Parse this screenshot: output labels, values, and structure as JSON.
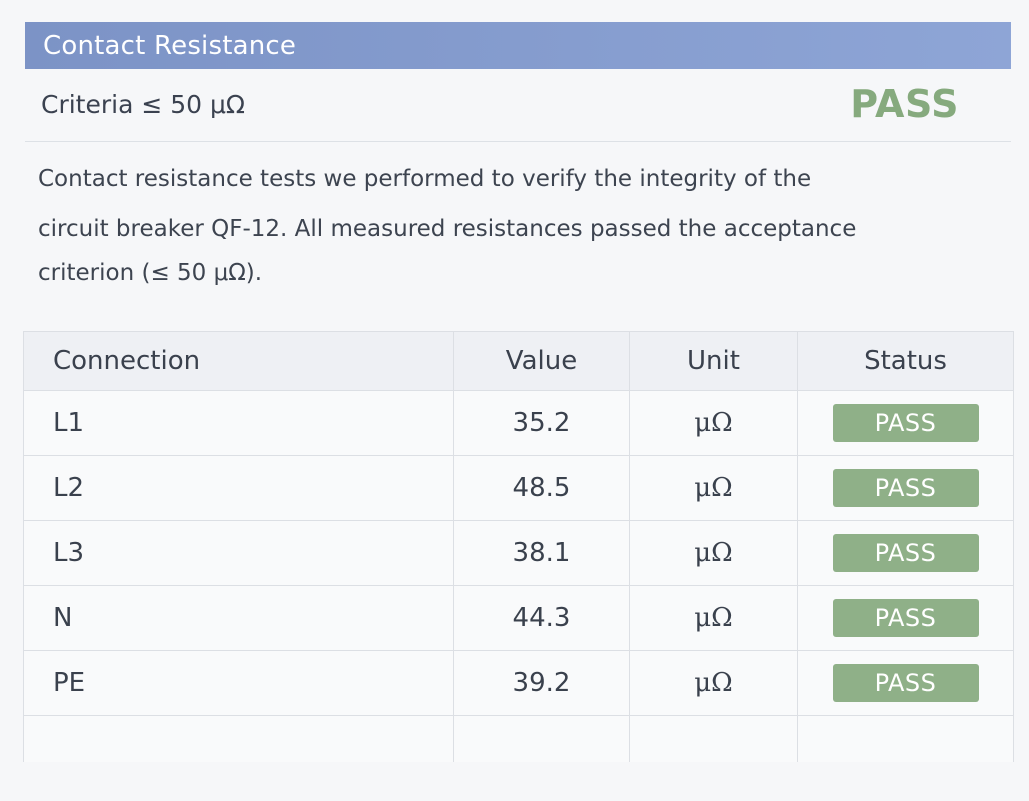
{
  "section": {
    "title": "Contact Resistance",
    "criteria": "Criteria ≤ 50 μΩ",
    "overall_status": "PASS"
  },
  "description": {
    "line1": "Contact resistance tests we performed to verify the integrity of the",
    "line2": "circuit breaker QF-12. All measured resistances passed the acceptance",
    "line3": "criterion (≤ 50 μΩ)."
  },
  "table": {
    "headers": {
      "connection": "Connection",
      "value": "Value",
      "unit": "Unit",
      "status": "Status"
    },
    "rows": [
      {
        "connection": "L1",
        "value": "35.2",
        "unit": "μΩ",
        "status": "PASS"
      },
      {
        "connection": "L2",
        "value": "48.5",
        "unit": "μΩ",
        "status": "PASS"
      },
      {
        "connection": "L3",
        "value": "38.1",
        "unit": "μΩ",
        "status": "PASS"
      },
      {
        "connection": "N",
        "value": "44.3",
        "unit": "μΩ",
        "status": "PASS"
      },
      {
        "connection": "PE",
        "value": "39.2",
        "unit": "μΩ",
        "status": "PASS"
      }
    ]
  },
  "colors": {
    "header_bar": "#8ea5d6",
    "pass_text": "#86aa7e",
    "pass_badge": "#8fb088"
  }
}
